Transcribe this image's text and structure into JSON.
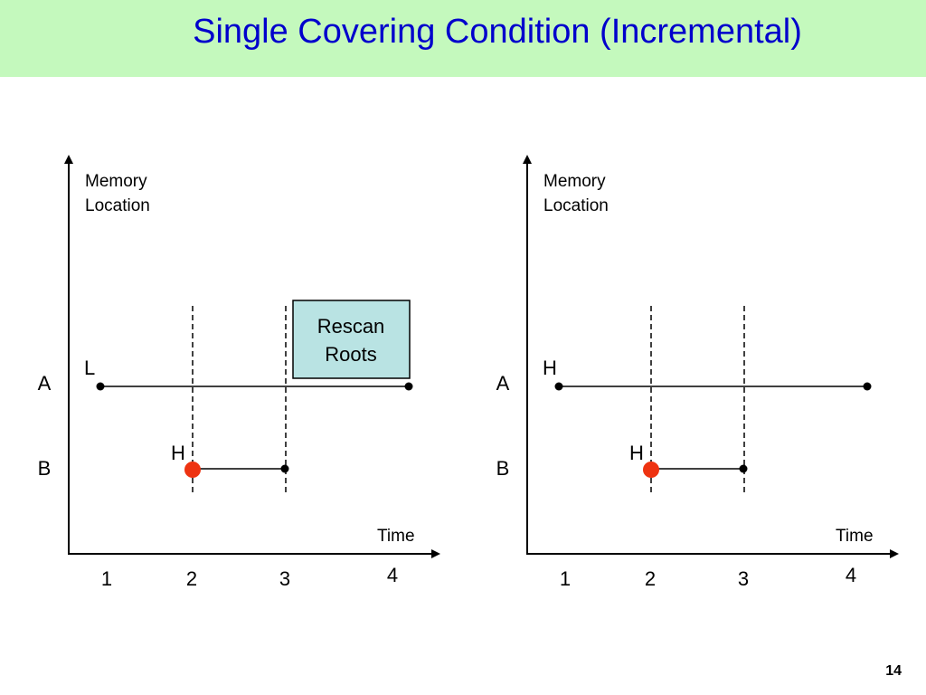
{
  "slide": {
    "title": "Single Covering Condition (Incremental)",
    "page_number": "14"
  },
  "colors": {
    "title_bar": "#c4f9bd",
    "title_text": "#0000cc",
    "marker_dot": "#ee3311",
    "callout_fill": "#b9e3e3"
  },
  "diagrams": [
    {
      "y_axis_label": [
        "Memory",
        "Location"
      ],
      "x_axis_label": "Time",
      "x_ticks": [
        "1",
        "2",
        "3",
        "4"
      ],
      "rows": [
        "A",
        "B"
      ],
      "segment_labels": {
        "a": "L",
        "b": "H"
      },
      "callout": [
        "Rescan",
        "Roots"
      ]
    },
    {
      "y_axis_label": [
        "Memory",
        "Location"
      ],
      "x_axis_label": "Time",
      "x_ticks": [
        "1",
        "2",
        "3",
        "4"
      ],
      "rows": [
        "A",
        "B"
      ],
      "segment_labels": {
        "a": "H",
        "b": "H"
      }
    }
  ]
}
